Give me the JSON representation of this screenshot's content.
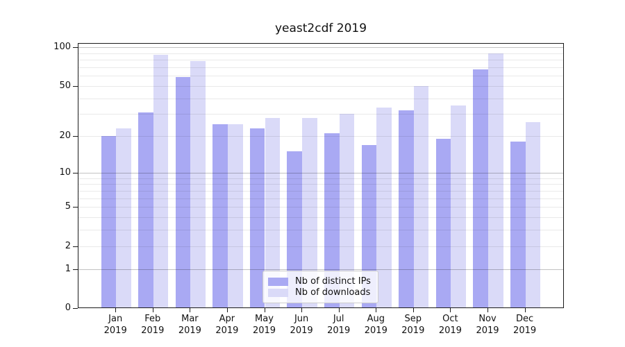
{
  "title": "yeast2cdf 2019",
  "colors": {
    "distinct_ips_bar": "#a9a9f3",
    "downloads_bar": "#dadaf8",
    "frame": "#1a1a1a"
  },
  "chart_data": {
    "type": "bar",
    "title": "yeast2cdf 2019",
    "scale": "log1p",
    "grid": true,
    "legend_position": "lower center",
    "categories": [
      "Jan",
      "Feb",
      "Mar",
      "Apr",
      "May",
      "Jun",
      "Jul",
      "Aug",
      "Sep",
      "Oct",
      "Nov",
      "Dec"
    ],
    "x_sublabel": "2019",
    "series": [
      {
        "name": "Nb of distinct IPs",
        "values": [
          20,
          31,
          59,
          25,
          23,
          15,
          21,
          17,
          32,
          19,
          67,
          18
        ]
      },
      {
        "name": "Nb of downloads",
        "values": [
          23,
          88,
          78,
          25,
          28,
          28,
          30,
          34,
          50,
          35,
          90,
          26
        ]
      }
    ],
    "y_ticks": [
      0,
      1,
      2,
      5,
      10,
      20,
      50,
      100
    ],
    "ylim": [
      0,
      109
    ],
    "xlabel": "",
    "ylabel": ""
  },
  "legend": {
    "items": [
      {
        "label": "Nb of distinct IPs",
        "color_key": "distinct_ips_bar"
      },
      {
        "label": "Nb of downloads",
        "color_key": "downloads_bar"
      }
    ]
  }
}
